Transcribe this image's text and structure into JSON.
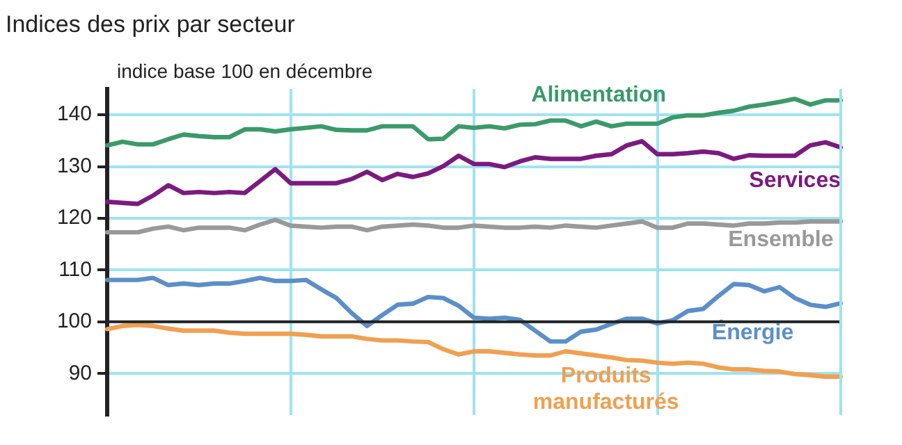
{
  "chart_data": {
    "type": "line",
    "title": "Indices des prix par secteur",
    "ylabel": "indice base 100 en décembre",
    "categories": [
      null,
      null,
      null,
      null,
      null,
      null,
      null,
      null,
      null,
      null,
      null,
      null,
      null,
      null,
      null,
      null,
      null,
      null,
      null,
      null,
      null,
      null,
      null,
      null,
      null,
      null,
      null,
      null,
      null,
      null,
      null,
      null,
      null,
      null,
      null,
      null,
      null,
      null,
      null,
      null,
      null,
      null,
      null,
      null,
      null,
      null,
      null,
      null,
      null
    ],
    "ylim": [
      82,
      145
    ],
    "ref_lines": [
      {
        "axis": "y",
        "value": 100,
        "color": "#222222"
      }
    ],
    "yticks": [
      90,
      100,
      110,
      120,
      130,
      140
    ],
    "grid": true,
    "legend": false,
    "marker": "none",
    "line_style": "solid",
    "series": [
      {
        "name": "Alimentation",
        "color": "#3a9a6a",
        "values": [
          134.1,
          134.8,
          134.3,
          134.3,
          135.3,
          136.2,
          135.9,
          135.7,
          135.7,
          137.2,
          137.2,
          136.8,
          137.2,
          137.5,
          137.8,
          137.1,
          137.0,
          137.0,
          137.8,
          137.8,
          137.8,
          135.3,
          135.4,
          137.8,
          137.5,
          137.8,
          137.4,
          138.1,
          138.2,
          138.9,
          138.9,
          137.8,
          138.7,
          137.8,
          138.3,
          138.3,
          138.3,
          139.5,
          139.9,
          139.9,
          140.4,
          140.8,
          141.6,
          142.0,
          142.5,
          143.1,
          142.0,
          142.8,
          142.8
        ]
      },
      {
        "name": "Services",
        "color": "#7b1a7f",
        "values": [
          123.2,
          123.0,
          122.8,
          124.4,
          126.4,
          124.9,
          125.1,
          124.9,
          125.1,
          124.9,
          127.2,
          129.5,
          126.8,
          126.8,
          126.8,
          126.8,
          127.6,
          129.0,
          127.4,
          128.6,
          128.0,
          128.7,
          130.1,
          132.1,
          130.5,
          130.5,
          129.9,
          131.0,
          131.8,
          131.5,
          131.5,
          131.5,
          132.1,
          132.4,
          134.1,
          134.9,
          132.4,
          132.4,
          132.6,
          132.9,
          132.6,
          131.5,
          132.2,
          132.1,
          132.1,
          132.1,
          134.1,
          134.7,
          133.7
        ]
      },
      {
        "name": "Ensemble",
        "color": "#999999",
        "values": [
          117.3,
          117.3,
          117.3,
          118.0,
          118.4,
          117.7,
          118.2,
          118.2,
          118.2,
          117.7,
          118.8,
          119.7,
          118.6,
          118.4,
          118.2,
          118.4,
          118.4,
          117.7,
          118.4,
          118.6,
          118.8,
          118.6,
          118.2,
          118.2,
          118.6,
          118.4,
          118.2,
          118.2,
          118.4,
          118.2,
          118.6,
          118.4,
          118.2,
          118.6,
          119.0,
          119.4,
          118.2,
          118.2,
          119.0,
          119.0,
          118.8,
          118.6,
          119.0,
          119.0,
          119.2,
          119.2,
          119.4,
          119.4,
          119.4
        ]
      },
      {
        "name": "Énergie",
        "color": "#5b8fc8",
        "values": [
          108.1,
          108.1,
          108.1,
          108.5,
          107.1,
          107.4,
          107.1,
          107.4,
          107.4,
          107.9,
          108.5,
          107.9,
          107.9,
          108.1,
          106.3,
          104.6,
          101.7,
          99.2,
          101.3,
          103.3,
          103.5,
          104.8,
          104.6,
          103.1,
          100.8,
          100.6,
          100.8,
          100.4,
          98.3,
          96.2,
          96.2,
          98.1,
          98.5,
          99.6,
          100.6,
          100.6,
          99.7,
          100.3,
          102.1,
          102.5,
          105.0,
          107.3,
          107.1,
          105.9,
          106.7,
          104.6,
          103.3,
          102.9,
          103.6
        ]
      },
      {
        "name": "Produits manufacturés",
        "color": "#f0a050",
        "values": [
          98.6,
          99.2,
          99.4,
          99.2,
          98.7,
          98.3,
          98.3,
          98.3,
          97.9,
          97.7,
          97.7,
          97.7,
          97.7,
          97.5,
          97.2,
          97.2,
          97.2,
          96.7,
          96.4,
          96.4,
          96.2,
          96.1,
          94.7,
          93.7,
          94.3,
          94.3,
          94.0,
          93.7,
          93.5,
          93.5,
          94.3,
          93.9,
          93.5,
          93.1,
          92.6,
          92.5,
          92.1,
          91.9,
          92.1,
          91.9,
          91.2,
          90.8,
          90.8,
          90.5,
          90.4,
          89.9,
          89.7,
          89.4,
          89.4
        ]
      }
    ]
  }
}
